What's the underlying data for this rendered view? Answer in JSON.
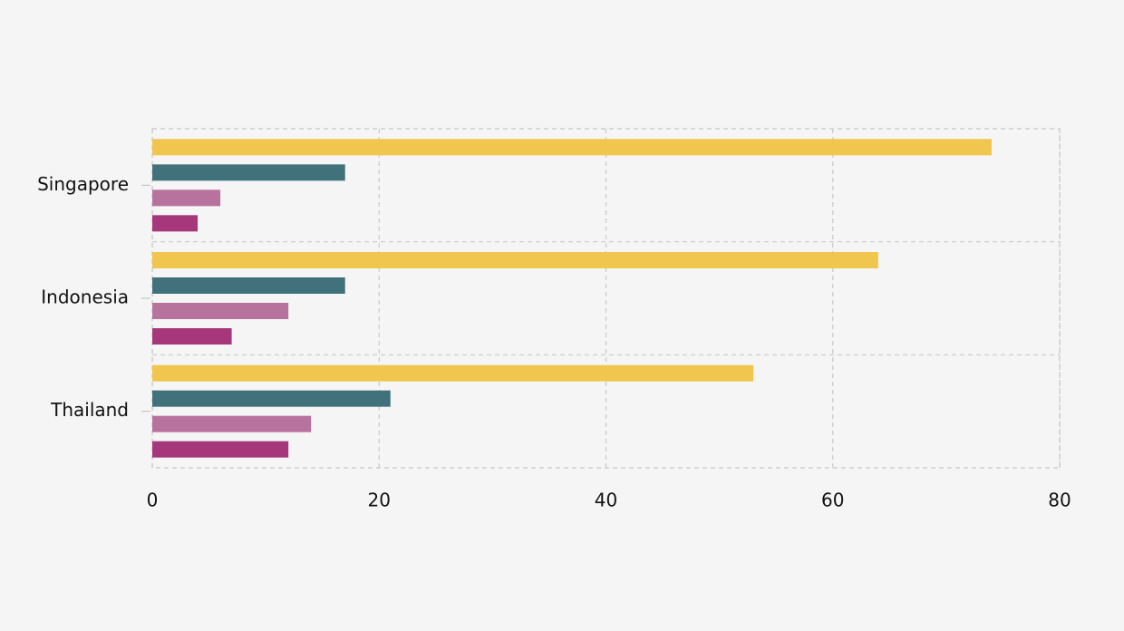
{
  "chart_data": {
    "type": "hbar",
    "categories": [
      "Singapore",
      "Indonesia",
      "Thailand"
    ],
    "series": [
      {
        "color": "#f0c64f",
        "values": [
          74,
          64,
          53
        ]
      },
      {
        "color": "#41727c",
        "values": [
          17,
          17,
          21
        ]
      },
      {
        "color": "#b7739e",
        "values": [
          6,
          12,
          14
        ]
      },
      {
        "color": "#a6377a",
        "values": [
          4,
          7,
          12
        ]
      }
    ],
    "xlim": [
      0,
      80
    ],
    "xticks": [
      0,
      20,
      40,
      60,
      80
    ],
    "grid": true
  }
}
